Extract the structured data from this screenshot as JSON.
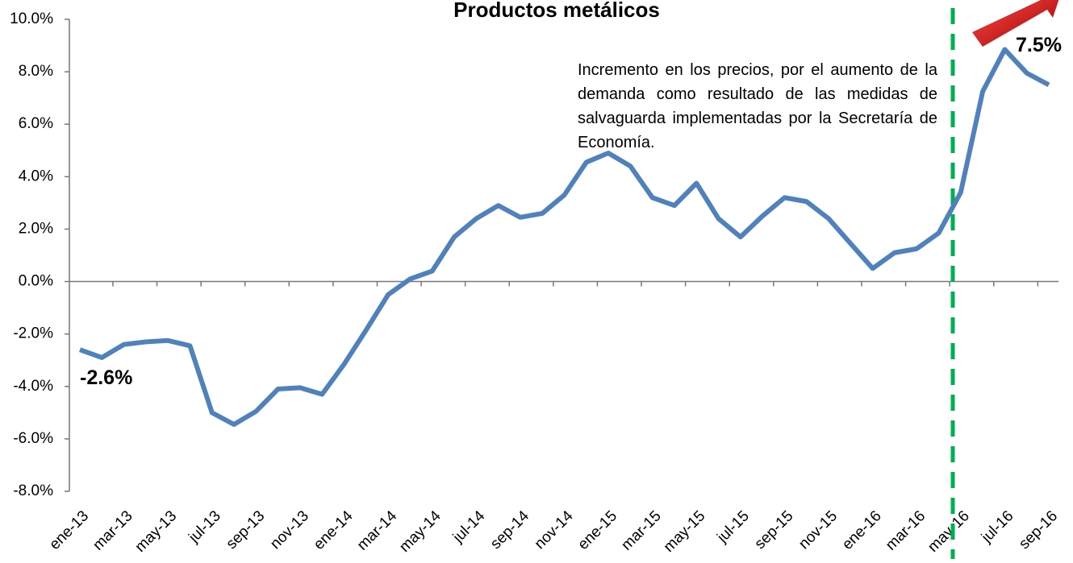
{
  "chart_data": {
    "type": "line",
    "title": "Productos metálicos",
    "annotation": "Incremento en los precios, por el aumento de la demanda como resultado de las medidas de salvaguarda implementadas por la Secretaría de Economía.",
    "categories": [
      "ene-13",
      null,
      "mar-13",
      null,
      "may-13",
      null,
      "jul-13",
      null,
      "sep-13",
      null,
      "nov-13",
      null,
      "ene-14",
      null,
      "mar-14",
      null,
      "may-14",
      null,
      "jul-14",
      null,
      "sep-14",
      null,
      "nov-14",
      null,
      "ene-15",
      null,
      "mar-15",
      null,
      "may-15",
      null,
      "jul-15",
      null,
      "sep-15",
      null,
      "nov-15",
      null,
      "ene-16",
      null,
      "mar-16",
      null,
      "may-16",
      null,
      "jul-16",
      null,
      "sep-16"
    ],
    "series": [
      {
        "name": "Productos metálicos",
        "color": "#4f81bd",
        "values": [
          -2.6,
          -2.9,
          -2.4,
          -2.3,
          -2.25,
          -2.45,
          -5.0,
          -5.45,
          -4.95,
          -4.1,
          -4.05,
          -4.3,
          -3.15,
          -1.85,
          -0.5,
          0.1,
          0.4,
          1.7,
          2.4,
          2.9,
          2.45,
          2.6,
          3.3,
          4.55,
          4.9,
          4.4,
          3.2,
          2.9,
          3.75,
          2.4,
          1.7,
          2.5,
          3.2,
          3.05,
          2.4,
          1.45,
          0.5,
          1.1,
          1.25,
          1.85,
          3.4,
          7.25,
          8.85,
          7.95,
          7.5
        ],
        "value_labels": [
          "-2.6%",
          null,
          null,
          null,
          null,
          null,
          null,
          null,
          null,
          null,
          null,
          null,
          null,
          null,
          null,
          null,
          null,
          null,
          null,
          null,
          null,
          null,
          null,
          null,
          null,
          null,
          null,
          null,
          null,
          null,
          null,
          null,
          null,
          null,
          null,
          null,
          null,
          null,
          null,
          null,
          null,
          null,
          null,
          null,
          "7.5%"
        ]
      }
    ],
    "ylim": [
      -8,
      10
    ],
    "yticks": [
      {
        "value": -8,
        "label": "-8.0%"
      },
      {
        "value": -6,
        "label": "-6.0%"
      },
      {
        "value": -4,
        "label": "-4.0%"
      },
      {
        "value": -2,
        "label": "-2.0%"
      },
      {
        "value": 0,
        "label": "0.0%"
      },
      {
        "value": 2,
        "label": "2.0%"
      },
      {
        "value": 4,
        "label": "4.0%"
      },
      {
        "value": 6,
        "label": "6.0%"
      },
      {
        "value": 8,
        "label": "8.0%"
      },
      {
        "value": 10,
        "label": "10.0%"
      }
    ],
    "grid": false
  }
}
